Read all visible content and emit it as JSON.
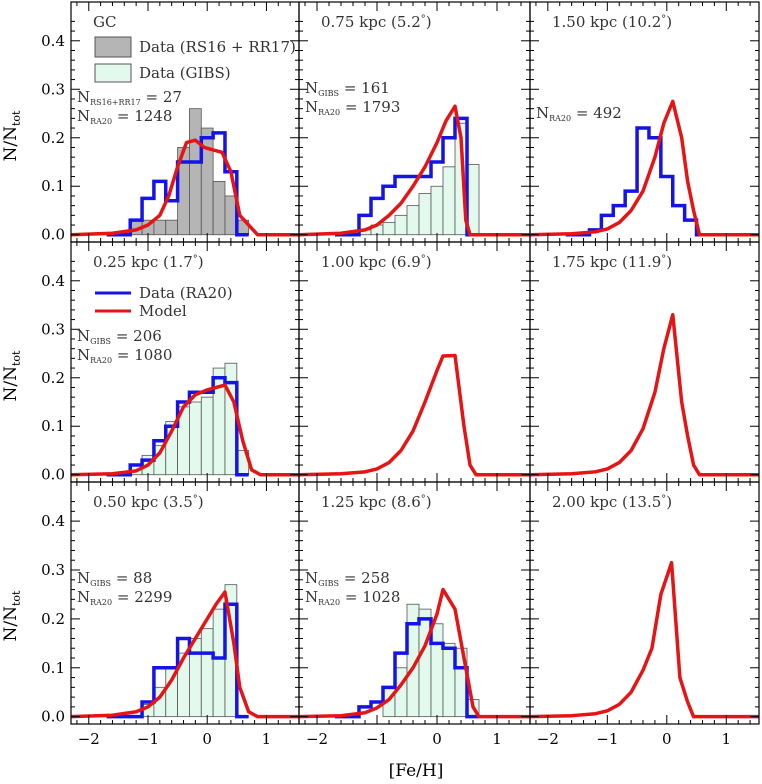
{
  "figure": {
    "xlabel": "[Fe/H]",
    "ylabel_main": "N/N",
    "ylabel_sub": "tot"
  },
  "chart_data": {
    "type": "histogram-grid",
    "xlim": [
      -2.3,
      1.55
    ],
    "ylim": [
      -0.015,
      0.48
    ],
    "xticks": [
      -2,
      -1,
      0,
      1
    ],
    "yticks": [
      0.0,
      0.1,
      0.2,
      0.3,
      0.4
    ],
    "x_tick_labels": [
      "−2",
      "−1",
      "0",
      "1"
    ],
    "y_tick_labels": [
      "0.0",
      "0.1",
      "0.2",
      "0.3",
      "0.4"
    ],
    "legend_labels": {
      "gray": "Data (RS16 + RR17)",
      "green": "Data (GIBS)",
      "blue": "Data (RA20)",
      "red": "Model"
    },
    "colors": {
      "gray_fill": "#b5b5b5",
      "green_fill": "#e3f9ee",
      "blue": "#1414e6",
      "red": "#e61414"
    },
    "hist_edges_main": [
      -1.7,
      -1.5,
      -1.3,
      -1.1,
      -0.9,
      -0.7,
      -0.5,
      -0.3,
      -0.1,
      0.1,
      0.3,
      0.5,
      0.7
    ],
    "panels": [
      {
        "title": "GC",
        "col": 0,
        "row": 0,
        "counts": [
          {
            "main": "N",
            "sub": "RS16+RR17",
            "value": "= 27"
          },
          {
            "main": "N",
            "sub": "RA20",
            "value": "= 1248"
          }
        ],
        "gray_hist": {
          "edges": [
            -1.3,
            -1.1,
            -0.9,
            -0.7,
            -0.5,
            -0.3,
            -0.1,
            0.1,
            0.3,
            0.5,
            0.7
          ],
          "values": [
            0.03,
            0.03,
            0.03,
            0.03,
            0.18,
            0.26,
            0.22,
            0.11,
            0.08,
            0.03
          ]
        },
        "blue_hist": [
          0.0,
          0.0,
          0.03,
          0.075,
          0.11,
          0.07,
          0.15,
          0.15,
          0.2,
          0.21,
          0.13,
          0.0
        ],
        "model": [
          [
            -2.3,
            0
          ],
          [
            -1.6,
            0.003
          ],
          [
            -1.2,
            0.01
          ],
          [
            -1.0,
            0.02
          ],
          [
            -0.8,
            0.04
          ],
          [
            -0.65,
            0.08
          ],
          [
            -0.5,
            0.14
          ],
          [
            -0.35,
            0.19
          ],
          [
            -0.2,
            0.195
          ],
          [
            -0.05,
            0.18
          ],
          [
            0.1,
            0.175
          ],
          [
            0.25,
            0.17
          ],
          [
            0.4,
            0.13
          ],
          [
            0.55,
            0.04
          ],
          [
            0.7,
            0.02
          ],
          [
            0.85,
            0.0
          ],
          [
            1.55,
            0
          ]
        ]
      },
      {
        "title": "0.75 kpc (5.2°)",
        "col": 1,
        "row": 0,
        "counts": [
          {
            "main": "N",
            "sub": "GIBS",
            "value": "= 161"
          },
          {
            "main": "N",
            "sub": "RA20",
            "value": "= 1793"
          }
        ],
        "green_hist": [
          0.0,
          0.0,
          0.01,
          0.02,
          0.025,
          0.04,
          0.06,
          0.085,
          0.1,
          0.14,
          0.23,
          0.145
        ],
        "blue_hist": [
          0.0,
          0.0,
          0.04,
          0.075,
          0.1,
          0.12,
          0.12,
          0.12,
          0.15,
          0.2,
          0.24,
          0.0
        ],
        "model": [
          [
            -2.3,
            0
          ],
          [
            -1.6,
            0.003
          ],
          [
            -1.2,
            0.01
          ],
          [
            -1.0,
            0.02
          ],
          [
            -0.8,
            0.04
          ],
          [
            -0.6,
            0.065
          ],
          [
            -0.4,
            0.1
          ],
          [
            -0.2,
            0.14
          ],
          [
            0.0,
            0.19
          ],
          [
            0.15,
            0.235
          ],
          [
            0.3,
            0.265
          ],
          [
            0.4,
            0.2
          ],
          [
            0.48,
            0.03
          ],
          [
            0.55,
            0.0
          ],
          [
            1.55,
            0
          ]
        ]
      },
      {
        "title": "1.50 kpc (10.2°)",
        "col": 2,
        "row": 0,
        "counts": [
          {
            "main": "N",
            "sub": "RA20",
            "value": "= 492"
          }
        ],
        "blue_hist": [
          0.0,
          0.0,
          0.01,
          0.04,
          0.06,
          0.09,
          0.22,
          0.2,
          0.12,
          0.06,
          0.03,
          0.0
        ],
        "model": [
          [
            -2.3,
            0
          ],
          [
            -1.6,
            0.002
          ],
          [
            -1.2,
            0.006
          ],
          [
            -1.0,
            0.012
          ],
          [
            -0.8,
            0.025
          ],
          [
            -0.6,
            0.05
          ],
          [
            -0.4,
            0.09
          ],
          [
            -0.2,
            0.16
          ],
          [
            -0.05,
            0.23
          ],
          [
            0.1,
            0.275
          ],
          [
            0.25,
            0.2
          ],
          [
            0.35,
            0.11
          ],
          [
            0.45,
            0.05
          ],
          [
            0.55,
            0.0
          ],
          [
            1.55,
            0
          ]
        ]
      },
      {
        "title": "0.25 kpc (1.7°)",
        "col": 0,
        "row": 1,
        "legend": true,
        "counts": [
          {
            "main": "N",
            "sub": "GIBS",
            "value": "= 206"
          },
          {
            "main": "N",
            "sub": "RA20",
            "value": "= 1080"
          }
        ],
        "green_hist": [
          0.0,
          0.0,
          0.02,
          0.04,
          0.06,
          0.11,
          0.14,
          0.15,
          0.16,
          0.22,
          0.23,
          0.05
        ],
        "blue_hist": [
          0.0,
          0.0,
          0.02,
          0.03,
          0.07,
          0.1,
          0.15,
          0.17,
          0.17,
          0.2,
          0.19,
          0.0
        ],
        "model": [
          [
            -2.3,
            0
          ],
          [
            -1.6,
            0.002
          ],
          [
            -1.2,
            0.008
          ],
          [
            -1.0,
            0.02
          ],
          [
            -0.8,
            0.045
          ],
          [
            -0.6,
            0.09
          ],
          [
            -0.4,
            0.14
          ],
          [
            -0.2,
            0.165
          ],
          [
            0.0,
            0.175
          ],
          [
            0.15,
            0.18
          ],
          [
            0.3,
            0.185
          ],
          [
            0.45,
            0.15
          ],
          [
            0.6,
            0.07
          ],
          [
            0.75,
            0.01
          ],
          [
            0.9,
            0.0
          ],
          [
            1.55,
            0
          ]
        ]
      },
      {
        "title": "1.00 kpc (6.9°)",
        "col": 1,
        "row": 1,
        "counts": [],
        "model": [
          [
            -2.3,
            0
          ],
          [
            -1.6,
            0.002
          ],
          [
            -1.2,
            0.006
          ],
          [
            -1.0,
            0.012
          ],
          [
            -0.8,
            0.025
          ],
          [
            -0.6,
            0.05
          ],
          [
            -0.4,
            0.09
          ],
          [
            -0.2,
            0.15
          ],
          [
            0.0,
            0.215
          ],
          [
            0.1,
            0.245
          ],
          [
            0.3,
            0.246
          ],
          [
            0.45,
            0.1
          ],
          [
            0.55,
            0.02
          ],
          [
            0.65,
            0.0
          ],
          [
            1.55,
            0
          ]
        ]
      },
      {
        "title": "1.75 kpc (11.9°)",
        "col": 2,
        "row": 1,
        "counts": [],
        "model": [
          [
            -2.3,
            0
          ],
          [
            -1.6,
            0.002
          ],
          [
            -1.2,
            0.006
          ],
          [
            -1.0,
            0.012
          ],
          [
            -0.8,
            0.025
          ],
          [
            -0.6,
            0.05
          ],
          [
            -0.4,
            0.095
          ],
          [
            -0.2,
            0.17
          ],
          [
            -0.05,
            0.26
          ],
          [
            0.1,
            0.33
          ],
          [
            0.25,
            0.15
          ],
          [
            0.35,
            0.08
          ],
          [
            0.45,
            0.02
          ],
          [
            0.55,
            0.0
          ],
          [
            1.55,
            0
          ]
        ]
      },
      {
        "title": "0.50 kpc (3.5°)",
        "col": 0,
        "row": 2,
        "counts": [
          {
            "main": "N",
            "sub": "GIBS",
            "value": "= 88"
          },
          {
            "main": "N",
            "sub": "RA20",
            "value": "= 2299"
          }
        ],
        "green_hist": [
          0.0,
          0.0,
          0.0,
          0.025,
          0.06,
          0.1,
          0.13,
          0.16,
          0.18,
          0.22,
          0.27,
          0.0
        ],
        "blue_hist": [
          0.0,
          0.0,
          0.0,
          0.03,
          0.1,
          0.1,
          0.16,
          0.13,
          0.13,
          0.12,
          0.23,
          0.0
        ],
        "model": [
          [
            -2.3,
            0
          ],
          [
            -1.6,
            0.003
          ],
          [
            -1.2,
            0.01
          ],
          [
            -1.0,
            0.02
          ],
          [
            -0.8,
            0.04
          ],
          [
            -0.6,
            0.075
          ],
          [
            -0.4,
            0.12
          ],
          [
            -0.2,
            0.16
          ],
          [
            0.0,
            0.2
          ],
          [
            0.15,
            0.23
          ],
          [
            0.3,
            0.255
          ],
          [
            0.45,
            0.15
          ],
          [
            0.55,
            0.06
          ],
          [
            0.7,
            0.01
          ],
          [
            0.85,
            0.0
          ],
          [
            1.55,
            0
          ]
        ]
      },
      {
        "title": "1.25 kpc (8.6°)",
        "col": 1,
        "row": 2,
        "counts": [
          {
            "main": "N",
            "sub": "GIBS",
            "value": "= 258"
          },
          {
            "main": "N",
            "sub": "RA20",
            "value": "= 1028"
          }
        ],
        "green_hist": [
          0.0,
          0.0,
          0.0,
          0.0,
          0.06,
          0.1,
          0.23,
          0.22,
          0.19,
          0.15,
          0.14,
          0.035
        ],
        "blue_hist": [
          0.0,
          0.0,
          0.02,
          0.03,
          0.06,
          0.13,
          0.19,
          0.2,
          0.15,
          0.14,
          0.1,
          0.0
        ],
        "model": [
          [
            -2.3,
            0
          ],
          [
            -1.6,
            0.002
          ],
          [
            -1.2,
            0.008
          ],
          [
            -1.0,
            0.018
          ],
          [
            -0.8,
            0.035
          ],
          [
            -0.6,
            0.065
          ],
          [
            -0.4,
            0.1
          ],
          [
            -0.2,
            0.145
          ],
          [
            0.0,
            0.21
          ],
          [
            0.1,
            0.26
          ],
          [
            0.3,
            0.22
          ],
          [
            0.45,
            0.12
          ],
          [
            0.6,
            0.02
          ],
          [
            0.7,
            0.0
          ],
          [
            1.55,
            0
          ]
        ]
      },
      {
        "title": "2.00 kpc (13.5°)",
        "col": 2,
        "row": 2,
        "counts": [],
        "model": [
          [
            -2.3,
            0
          ],
          [
            -1.6,
            0.002
          ],
          [
            -1.2,
            0.006
          ],
          [
            -1.0,
            0.012
          ],
          [
            -0.8,
            0.025
          ],
          [
            -0.6,
            0.05
          ],
          [
            -0.4,
            0.095
          ],
          [
            -0.25,
            0.14
          ],
          [
            -0.1,
            0.25
          ],
          [
            0.08,
            0.315
          ],
          [
            0.22,
            0.08
          ],
          [
            0.35,
            0.03
          ],
          [
            0.45,
            0.0
          ],
          [
            1.55,
            0
          ]
        ]
      }
    ]
  }
}
